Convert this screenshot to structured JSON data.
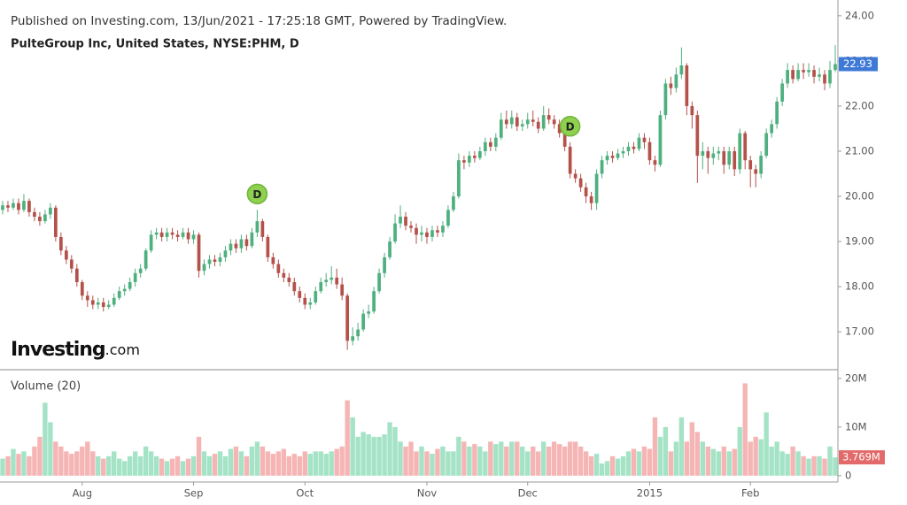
{
  "chart_data": {
    "type": "candlestick",
    "subtitle": "Published on Investing.com, 13/Jun/2021 - 17:25:18 GMT, Powered by TradingView.",
    "title": "PulteGroup Inc, United States, NYSE:PHM, D",
    "categories": [
      null,
      null,
      null,
      null,
      null,
      null,
      null,
      null,
      null,
      null,
      null,
      null,
      null,
      null,
      null,
      "Aug",
      null,
      null,
      null,
      null,
      null,
      null,
      null,
      null,
      null,
      null,
      null,
      null,
      null,
      null,
      null,
      null,
      null,
      null,
      null,
      null,
      "Sep",
      null,
      null,
      null,
      null,
      null,
      null,
      null,
      null,
      null,
      null,
      null,
      null,
      null,
      null,
      null,
      null,
      null,
      null,
      null,
      null,
      "Oct",
      null,
      null,
      null,
      null,
      null,
      null,
      null,
      null,
      null,
      null,
      null,
      null,
      null,
      null,
      null,
      null,
      null,
      null,
      null,
      null,
      null,
      null,
      "Nov",
      null,
      null,
      null,
      null,
      null,
      null,
      null,
      null,
      null,
      null,
      null,
      null,
      null,
      null,
      null,
      null,
      null,
      null,
      "Dec",
      null,
      null,
      null,
      null,
      null,
      null,
      null,
      null,
      null,
      null,
      null,
      null,
      null,
      null,
      null,
      null,
      null,
      null,
      null,
      null,
      null,
      null,
      "2015",
      null,
      null,
      null,
      null,
      null,
      null,
      null,
      null,
      null,
      null,
      null,
      null,
      null,
      null,
      null,
      null,
      null,
      null,
      "Feb",
      null,
      null,
      null,
      null,
      null,
      null,
      null,
      null,
      null,
      null,
      null,
      null,
      null,
      null,
      null,
      null
    ],
    "open": [
      19.7,
      19.8,
      19.75,
      19.85,
      19.7,
      19.9,
      19.65,
      19.55,
      19.45,
      19.6,
      19.75,
      19.1,
      18.8,
      18.6,
      18.4,
      18.1,
      17.8,
      17.7,
      17.6,
      17.65,
      17.55,
      17.6,
      17.75,
      17.9,
      17.95,
      18.1,
      18.3,
      18.4,
      18.8,
      19.15,
      19.2,
      19.1,
      19.2,
      19.15,
      19.1,
      19.2,
      19.05,
      19.15,
      18.35,
      18.5,
      18.6,
      18.55,
      18.65,
      18.8,
      18.95,
      18.85,
      19.05,
      18.9,
      19.2,
      19.45,
      19.1,
      18.65,
      18.5,
      18.3,
      18.2,
      18.1,
      17.9,
      17.75,
      17.6,
      17.65,
      17.9,
      18.1,
      18.15,
      18.2,
      18.05,
      17.8,
      16.8,
      16.9,
      17.05,
      17.4,
      17.45,
      17.9,
      18.3,
      18.65,
      19.0,
      19.4,
      19.55,
      19.35,
      19.3,
      19.15,
      19.2,
      19.1,
      19.25,
      19.2,
      19.35,
      19.7,
      20.0,
      20.8,
      20.75,
      20.9,
      20.85,
      21.0,
      21.2,
      21.1,
      21.3,
      21.7,
      21.6,
      21.75,
      21.55,
      21.6,
      21.7,
      21.65,
      21.5,
      21.8,
      21.7,
      21.6,
      21.4,
      21.1,
      20.5,
      20.4,
      20.2,
      20.0,
      19.85,
      20.5,
      20.8,
      20.9,
      20.85,
      20.95,
      21.0,
      21.1,
      21.05,
      21.3,
      21.2,
      20.8,
      20.7,
      21.8,
      22.5,
      22.4,
      22.7,
      22.9,
      22.0,
      21.8,
      20.9,
      21.0,
      20.85,
      20.95,
      21.0,
      20.7,
      21.0,
      20.6,
      21.4,
      20.8,
      20.6,
      20.5,
      20.9,
      21.4,
      21.6,
      22.1,
      22.5,
      22.8,
      22.6,
      22.8,
      22.75,
      22.8,
      22.65,
      22.7,
      22.5,
      22.8
    ],
    "high": [
      19.9,
      19.9,
      19.95,
      19.95,
      20.05,
      19.95,
      19.75,
      19.65,
      19.7,
      19.85,
      19.8,
      19.2,
      18.9,
      18.7,
      18.5,
      18.15,
      17.9,
      17.8,
      17.75,
      17.75,
      17.7,
      17.85,
      18.0,
      18.05,
      18.2,
      18.4,
      18.5,
      18.85,
      19.25,
      19.3,
      19.3,
      19.3,
      19.3,
      19.25,
      19.3,
      19.3,
      19.25,
      19.2,
      18.6,
      18.7,
      18.7,
      18.75,
      18.9,
      19.05,
      19.05,
      19.15,
      19.15,
      19.3,
      19.7,
      19.5,
      19.15,
      18.75,
      18.6,
      18.4,
      18.3,
      18.2,
      18.0,
      17.85,
      17.75,
      18.0,
      18.2,
      18.3,
      18.45,
      18.4,
      18.2,
      17.85,
      17.1,
      17.2,
      17.5,
      17.6,
      18.0,
      18.4,
      18.75,
      19.1,
      19.6,
      19.8,
      19.65,
      19.45,
      19.4,
      19.35,
      19.3,
      19.35,
      19.35,
      19.45,
      19.8,
      20.1,
      20.95,
      20.9,
      21.0,
      21.0,
      21.1,
      21.3,
      21.3,
      21.4,
      21.85,
      21.9,
      21.9,
      21.85,
      21.7,
      21.85,
      21.9,
      21.75,
      22.0,
      21.95,
      21.8,
      21.7,
      21.5,
      21.2,
      20.6,
      20.5,
      20.3,
      20.1,
      20.6,
      20.9,
      21.0,
      21.0,
      21.05,
      21.1,
      21.2,
      21.2,
      21.4,
      21.4,
      21.3,
      20.9,
      21.9,
      22.6,
      22.65,
      22.85,
      23.3,
      22.95,
      22.1,
      21.9,
      21.2,
      21.1,
      21.1,
      21.1,
      21.1,
      21.1,
      21.1,
      21.5,
      21.45,
      20.9,
      20.7,
      21.0,
      21.5,
      21.7,
      22.2,
      22.6,
      22.95,
      22.9,
      22.95,
      22.95,
      22.95,
      22.9,
      22.85,
      22.8,
      23.0,
      23.35
    ],
    "low": [
      19.6,
      19.65,
      19.7,
      19.6,
      19.65,
      19.55,
      19.45,
      19.35,
      19.4,
      19.5,
      19.0,
      18.7,
      18.5,
      18.3,
      18.0,
      17.7,
      17.55,
      17.5,
      17.5,
      17.45,
      17.5,
      17.55,
      17.7,
      17.8,
      17.9,
      18.0,
      18.2,
      18.35,
      18.75,
      19.05,
      19.0,
      19.0,
      19.05,
      19.0,
      19.05,
      18.95,
      18.95,
      18.2,
      18.25,
      18.4,
      18.45,
      18.45,
      18.55,
      18.7,
      18.75,
      18.75,
      18.8,
      18.85,
      19.1,
      19.0,
      18.55,
      18.4,
      18.2,
      18.1,
      18.0,
      17.8,
      17.65,
      17.5,
      17.5,
      17.6,
      17.85,
      18.0,
      18.05,
      17.95,
      17.7,
      16.6,
      16.7,
      16.8,
      17.0,
      17.3,
      17.4,
      17.85,
      18.2,
      18.6,
      18.95,
      19.3,
      19.25,
      19.2,
      18.95,
      19.0,
      18.95,
      19.0,
      19.1,
      19.1,
      19.3,
      19.65,
      19.95,
      20.6,
      20.65,
      20.75,
      20.8,
      20.9,
      21.0,
      21.0,
      21.25,
      21.5,
      21.5,
      21.45,
      21.45,
      21.5,
      21.55,
      21.4,
      21.45,
      21.6,
      21.5,
      21.3,
      21.0,
      20.4,
      20.3,
      20.1,
      19.85,
      19.7,
      19.7,
      20.4,
      20.7,
      20.75,
      20.8,
      20.85,
      20.9,
      20.95,
      21.0,
      21.05,
      20.7,
      20.55,
      20.65,
      21.7,
      22.25,
      22.3,
      22.6,
      21.8,
      21.5,
      20.3,
      20.6,
      20.5,
      20.7,
      20.8,
      20.5,
      20.6,
      20.45,
      20.5,
      20.6,
      20.2,
      20.2,
      20.4,
      20.85,
      21.3,
      21.5,
      22.0,
      22.4,
      22.5,
      22.55,
      22.6,
      22.65,
      22.5,
      22.55,
      22.35,
      22.4,
      22.75
    ],
    "close": [
      19.8,
      19.75,
      19.85,
      19.7,
      19.9,
      19.65,
      19.55,
      19.45,
      19.6,
      19.75,
      19.1,
      18.8,
      18.6,
      18.4,
      18.1,
      17.8,
      17.7,
      17.6,
      17.65,
      17.55,
      17.6,
      17.75,
      17.9,
      17.95,
      18.1,
      18.3,
      18.4,
      18.8,
      19.15,
      19.2,
      19.1,
      19.2,
      19.15,
      19.1,
      19.2,
      19.05,
      19.15,
      18.35,
      18.5,
      18.6,
      18.55,
      18.65,
      18.8,
      18.95,
      18.85,
      19.05,
      18.9,
      19.2,
      19.45,
      19.1,
      18.65,
      18.5,
      18.3,
      18.2,
      18.1,
      17.9,
      17.75,
      17.6,
      17.65,
      17.9,
      18.1,
      18.15,
      18.2,
      18.05,
      17.8,
      16.8,
      16.9,
      17.05,
      17.4,
      17.45,
      17.9,
      18.3,
      18.65,
      19.0,
      19.4,
      19.55,
      19.35,
      19.3,
      19.15,
      19.2,
      19.1,
      19.25,
      19.2,
      19.35,
      19.7,
      20.0,
      20.8,
      20.75,
      20.9,
      20.85,
      21.0,
      21.2,
      21.1,
      21.3,
      21.7,
      21.6,
      21.75,
      21.55,
      21.6,
      21.7,
      21.65,
      21.5,
      21.8,
      21.7,
      21.6,
      21.4,
      21.1,
      20.5,
      20.4,
      20.2,
      20.0,
      19.85,
      20.5,
      20.8,
      20.9,
      20.85,
      20.95,
      21.0,
      21.1,
      21.05,
      21.3,
      21.2,
      20.8,
      20.7,
      21.8,
      22.5,
      22.4,
      22.7,
      22.9,
      22.0,
      21.8,
      20.9,
      21.0,
      20.85,
      20.95,
      21.0,
      20.7,
      21.0,
      20.6,
      21.4,
      20.8,
      20.6,
      20.5,
      20.9,
      21.4,
      21.6,
      22.1,
      22.5,
      22.8,
      22.6,
      22.8,
      22.75,
      22.8,
      22.65,
      22.7,
      22.5,
      22.8,
      22.93
    ],
    "ylim": [
      16.16,
      24.35
    ],
    "yticks": [
      {
        "value": 17,
        "label": "17.00"
      },
      {
        "value": 18,
        "label": "18.00"
      },
      {
        "value": 19,
        "label": "19.00"
      },
      {
        "value": 20,
        "label": "20.00"
      },
      {
        "value": 21,
        "label": "21.00"
      },
      {
        "value": 22,
        "label": "22.00"
      },
      {
        "value": 23,
        "label": "23.00"
      },
      {
        "value": 24,
        "label": "24.00"
      }
    ],
    "up_color": "#4fb07f",
    "down_color": "#b4514a",
    "price_tag_color": "#3e79d6",
    "annotations": [
      {
        "index": 48,
        "label": "D"
      },
      {
        "index": 107,
        "label": "D"
      }
    ],
    "volume": {
      "title": "Volume (20)",
      "values": [
        3.5,
        4,
        5.5,
        4.5,
        5,
        4,
        6,
        8,
        15,
        11,
        7,
        6,
        5,
        4.5,
        5,
        6,
        7,
        5,
        4,
        3.5,
        4,
        5,
        3.5,
        3,
        4,
        5,
        4,
        6,
        5,
        4,
        3.5,
        3,
        3.5,
        4,
        3,
        3.5,
        4,
        8,
        5,
        4,
        4.5,
        5,
        4,
        5.5,
        6,
        5,
        4,
        6,
        7,
        6,
        5,
        4.5,
        5,
        5.5,
        4,
        4.5,
        4,
        5,
        4.5,
        5,
        5,
        4.5,
        5,
        5.5,
        6,
        15.5,
        12,
        8,
        9,
        8.5,
        8,
        8,
        8.5,
        11,
        10,
        7,
        6,
        7,
        5,
        6,
        5,
        4.5,
        5.5,
        6,
        5,
        5,
        8,
        7,
        6,
        6.5,
        6,
        5,
        7,
        6.5,
        7,
        6,
        7,
        7,
        6,
        5,
        6,
        5,
        7,
        6,
        7,
        6.5,
        6,
        7,
        7,
        6,
        5,
        4,
        4.5,
        2.5,
        3,
        4,
        3.5,
        4,
        5,
        5.5,
        5,
        6,
        5.5,
        12,
        8,
        10,
        5,
        7,
        12,
        7,
        11,
        9,
        7,
        6,
        5.5,
        5,
        6,
        5,
        5.5,
        10,
        19,
        7,
        8,
        7.5,
        13,
        6,
        7,
        5,
        4.5,
        6,
        5,
        4,
        3.5,
        4,
        4,
        3.5,
        6,
        3.769
      ],
      "last_label": "3.769M",
      "ylim": [
        -1.3,
        21.8
      ],
      "yticks": [
        0,
        {
          "value": 10,
          "label": "10M"
        },
        {
          "value": 20,
          "label": "20M"
        }
      ],
      "up_color": "#a4e3c5",
      "down_color": "#f6b5b5",
      "tag_color": "#e26a6a"
    }
  },
  "logo": {
    "brand": "Investing",
    "suffix": ".com"
  }
}
